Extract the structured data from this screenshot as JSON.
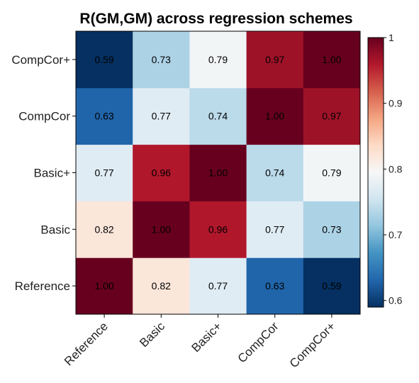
{
  "chart_data": {
    "type": "heatmap",
    "title": "R(GM,GM) across regression schemes",
    "x_categories": [
      "Reference",
      "Basic",
      "Basic+",
      "CompCor",
      "CompCor+"
    ],
    "y_categories": [
      "Reference",
      "Basic",
      "Basic+",
      "CompCor",
      "CompCor+"
    ],
    "values": [
      [
        1.0,
        0.82,
        0.77,
        0.63,
        0.59
      ],
      [
        0.82,
        1.0,
        0.96,
        0.77,
        0.73
      ],
      [
        0.77,
        0.96,
        1.0,
        0.74,
        0.79
      ],
      [
        0.63,
        0.77,
        0.74,
        1.0,
        0.97
      ],
      [
        0.59,
        0.73,
        0.79,
        0.97,
        1.0
      ]
    ],
    "value_labels": [
      [
        "1.00",
        "0.82",
        "0.77",
        "0.63",
        "0.59"
      ],
      [
        "0.82",
        "1.00",
        "0.96",
        "0.77",
        "0.73"
      ],
      [
        "0.77",
        "0.96",
        "1.00",
        "0.74",
        "0.79"
      ],
      [
        "0.63",
        "0.77",
        "0.74",
        "1.00",
        "0.97"
      ],
      [
        "0.59",
        "0.73",
        "0.79",
        "0.97",
        "1.00"
      ]
    ],
    "y_origin": "bottom",
    "colormap": "RdBu_r",
    "vmin": 0.59,
    "vmax": 1.0,
    "colorbar": {
      "ticks": [
        0.6,
        0.7,
        0.8,
        0.9,
        1.0
      ],
      "tick_labels": [
        "0.6",
        "0.7",
        "0.8",
        "0.9",
        "1"
      ]
    },
    "grid": false,
    "legend": "none"
  }
}
